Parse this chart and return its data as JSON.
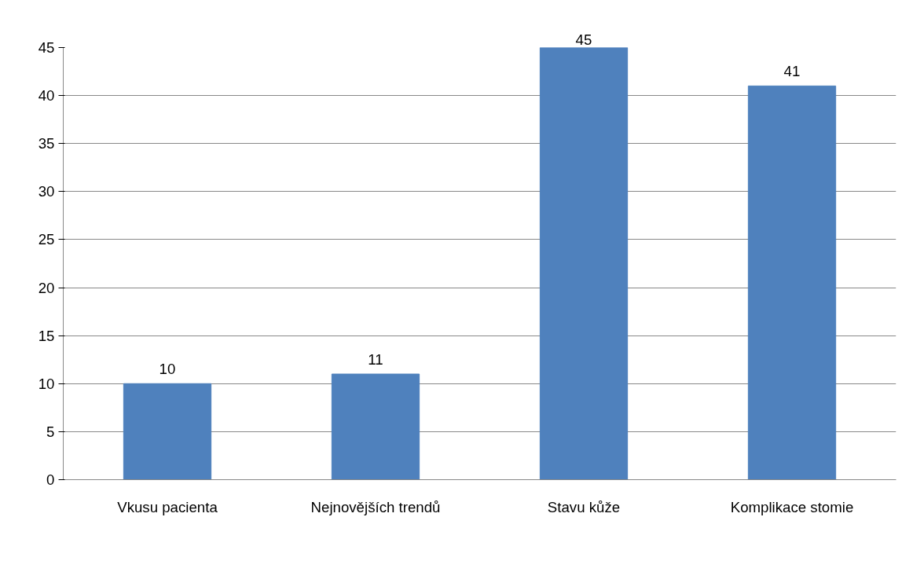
{
  "chart_data": {
    "type": "bar",
    "categories": [
      "Vkusu pacienta",
      "Nejnovějších trendů",
      "Stavu kůže",
      "Komplikace stomie"
    ],
    "values": [
      10,
      11,
      45,
      41
    ],
    "color": "#4f81bd",
    "ylim": [
      0,
      45
    ],
    "yticks": [
      0,
      5,
      10,
      15,
      20,
      25,
      30,
      35,
      40,
      45
    ],
    "grid": "y",
    "data_labels": true
  }
}
